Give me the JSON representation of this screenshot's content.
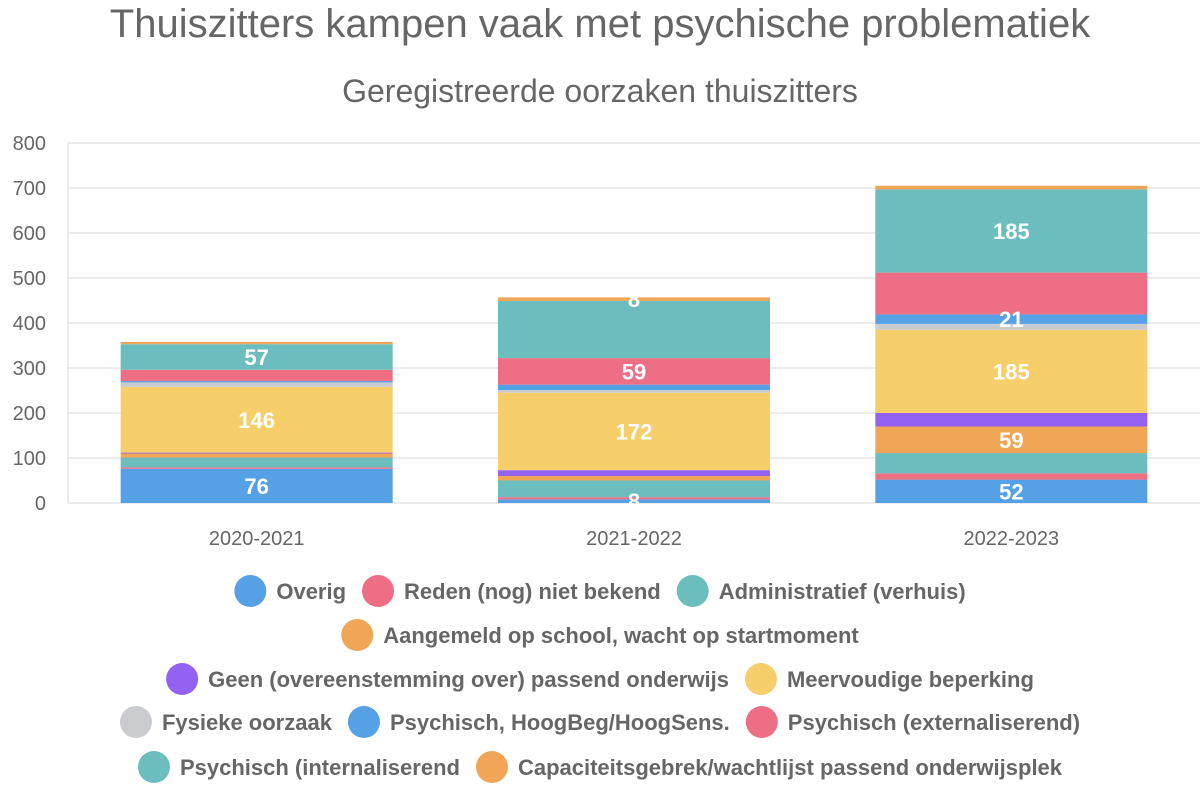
{
  "chart_data": {
    "type": "bar",
    "stacked": true,
    "title": "Thuiszitters kampen vaak met psychische problematiek",
    "subtitle": "Geregistreerde oorzaken thuiszitters",
    "categories": [
      "2020-2021",
      "2021-2022",
      "2022-2023"
    ],
    "ylim": [
      0,
      800
    ],
    "yticks": [
      0,
      100,
      200,
      300,
      400,
      500,
      600,
      700,
      800
    ],
    "grid": true,
    "legend_position": "bottom",
    "stack_order": [
      "Overig",
      "Psychisch (externaliserend)",
      "Psychisch (internaliserend",
      "Capaciteitsgebrek/wachtlijst passend onderwijsplek",
      "Geen (overeenstemming over) passend onderwijs",
      "Meervoudige beperking",
      "Fysieke oorzaak",
      "Psychisch, HoogBeg/HoogSens.",
      "Reden (nog) niet bekend",
      "Administratief (verhuis)",
      "Aangemeld op school, wacht op startmoment"
    ],
    "series": [
      {
        "name": "Overig",
        "color": "#56a0e5",
        "values": [
          76,
          8,
          52
        ],
        "labels": [
          "76",
          "8",
          "52"
        ]
      },
      {
        "name": "Reden (nog) niet bekend",
        "color": "#ee6e85",
        "values": [
          25,
          59,
          93
        ],
        "labels": [
          "",
          "59",
          ""
        ]
      },
      {
        "name": "Administratief (verhuis)",
        "color": "#6cbdbd",
        "values": [
          57,
          127,
          185
        ],
        "labels": [
          "57",
          "",
          "185"
        ]
      },
      {
        "name": "Aangemeld op school, wacht op startmoment",
        "color": "#f0a656",
        "values": [
          5,
          8,
          8
        ],
        "labels": [
          "",
          "8",
          ""
        ]
      },
      {
        "name": "Geen (overeenstemming over) passend onderwijs",
        "color": "#9462f3",
        "values": [
          2,
          13,
          30
        ],
        "labels": [
          "",
          "",
          ""
        ]
      },
      {
        "name": "Meervoudige beperking",
        "color": "#f6cf6b",
        "values": [
          146,
          172,
          185
        ],
        "labels": [
          "146",
          "172",
          "185"
        ]
      },
      {
        "name": "Fysieke oorzaak",
        "color": "#c9cbcf",
        "values": [
          10,
          6,
          13
        ],
        "labels": [
          "",
          "",
          ""
        ]
      },
      {
        "name": "Psychisch, HoogBeg/HoogSens.",
        "color": "#56a0e5",
        "values": [
          3,
          12,
          21
        ],
        "labels": [
          "",
          "",
          "21"
        ]
      },
      {
        "name": "Psychisch (externaliserend)",
        "color": "#ee6e85",
        "values": [
          3,
          5,
          14
        ],
        "labels": [
          "",
          "",
          ""
        ]
      },
      {
        "name": "Psychisch (internaliserend",
        "color": "#6cbdbd",
        "values": [
          22,
          37,
          45
        ],
        "labels": [
          "",
          "",
          ""
        ]
      },
      {
        "name": "Capaciteitsgebrek/wachtlijst passend onderwijsplek",
        "color": "#f0a656",
        "values": [
          9,
          10,
          59
        ],
        "labels": [
          "",
          "",
          "59"
        ]
      }
    ]
  }
}
